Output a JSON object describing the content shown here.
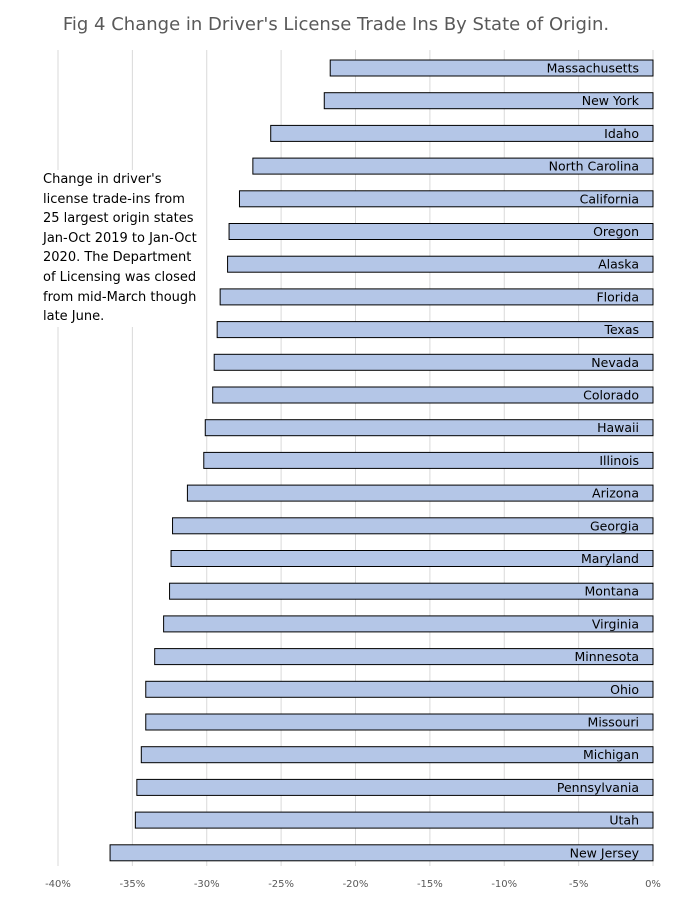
{
  "chart_data": {
    "type": "bar",
    "orientation": "horizontal",
    "title": "Fig 4 Change in Driver's License Trade Ins By State of Origin.",
    "xlabel": "",
    "ylabel": "",
    "xlim": [
      -40,
      0
    ],
    "x_ticks": [
      -40,
      -35,
      -30,
      -25,
      -20,
      -15,
      -10,
      -5,
      0
    ],
    "x_tick_labels": [
      "-40%",
      "-35%",
      "-30%",
      "-25%",
      "-20%",
      "-15%",
      "-10%",
      "-5%",
      "0%"
    ],
    "grid": "vertical",
    "bar_color": "#b4c6e7",
    "bar_edge_color": "#000000",
    "categories": [
      "Massachusetts",
      "New York",
      "Idaho",
      "North Carolina",
      "California",
      "Oregon",
      "Alaska",
      "Florida",
      "Texas",
      "Nevada",
      "Colorado",
      "Hawaii",
      "Illinois",
      "Arizona",
      "Georgia",
      "Maryland",
      "Montana",
      "Virginia",
      "Minnesota",
      "Ohio",
      "Missouri",
      "Michigan",
      "Pennsylvania",
      "Utah",
      "New Jersey"
    ],
    "values": [
      -21.7,
      -22.1,
      -25.7,
      -26.9,
      -27.8,
      -28.5,
      -28.6,
      -29.1,
      -29.3,
      -29.5,
      -29.6,
      -30.1,
      -30.2,
      -31.3,
      -32.3,
      -32.4,
      -32.5,
      -32.9,
      -33.5,
      -34.1,
      -34.1,
      -34.4,
      -34.7,
      -34.8,
      -36.5
    ],
    "annotation": "Change in driver's license trade-ins from 25 largest origin states Jan-Oct 2019 to Jan-Oct 2020. The Department of Licensing was closed from mid-March though late June."
  }
}
